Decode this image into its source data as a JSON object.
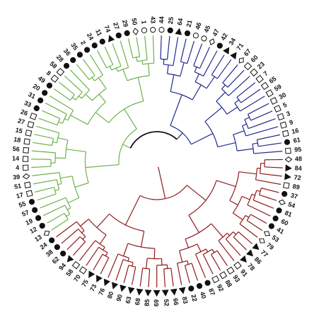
{
  "root_color": "#111111",
  "clusters": [
    {
      "color": "#1f2b8f",
      "leaves": [
        {
          "label": "44",
          "shape": "open-circle"
        },
        {
          "label": "25",
          "shape": "filled-circle"
        },
        {
          "label": "64",
          "shape": "filled-triangle"
        },
        {
          "label": "21",
          "shape": "filled-circle"
        },
        {
          "label": "46",
          "shape": "open-circle"
        },
        {
          "label": "45",
          "shape": "open-circle"
        },
        {
          "label": "47",
          "shape": "open-diamond"
        },
        {
          "label": "42",
          "shape": "filled-circle"
        },
        {
          "label": "34",
          "shape": "filled-triangle"
        },
        {
          "label": "71",
          "shape": "filled-triangle"
        },
        {
          "label": "67",
          "shape": "open-diamond"
        },
        {
          "label": "60",
          "shape": "open-square"
        },
        {
          "label": "23",
          "shape": "open-square"
        },
        {
          "label": "7",
          "shape": "open-square"
        },
        {
          "label": "65",
          "shape": "open-square"
        },
        {
          "label": "59",
          "shape": "open-square"
        },
        {
          "label": "30",
          "shape": "open-square"
        },
        {
          "label": "5",
          "shape": "open-square"
        },
        {
          "label": "3",
          "shape": "open-square"
        },
        {
          "label": "9",
          "shape": "open-square"
        },
        {
          "label": "16",
          "shape": "open-square"
        },
        {
          "label": "61",
          "shape": "filled-circle"
        },
        {
          "label": "95",
          "shape": "open-square"
        }
      ]
    },
    {
      "color": "#8e1b1b",
      "leaves": [
        {
          "label": "48",
          "shape": "open-diamond"
        },
        {
          "label": "84",
          "shape": "filled-triangle"
        },
        {
          "label": "72",
          "shape": "filled-triangle"
        },
        {
          "label": "89",
          "shape": "open-square"
        },
        {
          "label": "37",
          "shape": "filled-circle"
        },
        {
          "label": "54",
          "shape": "open-diamond"
        },
        {
          "label": "81",
          "shape": "filled-circle"
        },
        {
          "label": "60",
          "shape": "filled-circle"
        },
        {
          "label": "41",
          "shape": "filled-circle"
        },
        {
          "label": "53",
          "shape": "open-diamond"
        },
        {
          "label": "79",
          "shape": "open-diamond"
        },
        {
          "label": "77",
          "shape": "filled-triangle"
        },
        {
          "label": "86",
          "shape": "filled-triangle"
        },
        {
          "label": "78",
          "shape": "filled-triangle"
        },
        {
          "label": "91",
          "shape": "open-square"
        },
        {
          "label": "93",
          "shape": "open-square"
        },
        {
          "label": "88",
          "shape": "open-square"
        },
        {
          "label": "92",
          "shape": "open-square"
        },
        {
          "label": "87",
          "shape": "filled-circle"
        },
        {
          "label": "40",
          "shape": "filled-circle"
        },
        {
          "label": "22",
          "shape": "filled-circle"
        },
        {
          "label": "83",
          "shape": "filled-triangle"
        },
        {
          "label": "66",
          "shape": "filled-triangle"
        },
        {
          "label": "52",
          "shape": "filled-triangle"
        },
        {
          "label": "69",
          "shape": "filled-triangle"
        },
        {
          "label": "85",
          "shape": "filled-triangle"
        },
        {
          "label": "68",
          "shape": "filled-triangle"
        },
        {
          "label": "63",
          "shape": "filled-triangle"
        },
        {
          "label": "90",
          "shape": "filled-triangle"
        },
        {
          "label": "80",
          "shape": "filled-triangle"
        },
        {
          "label": "76",
          "shape": "filled-triangle"
        },
        {
          "label": "73",
          "shape": "filled-triangle"
        },
        {
          "label": "75",
          "shape": "filled-triangle"
        },
        {
          "label": "70",
          "shape": "open-square"
        },
        {
          "label": "58",
          "shape": "open-square"
        },
        {
          "label": "94",
          "shape": "filled-triangle"
        },
        {
          "label": "62",
          "shape": "filled-circle"
        },
        {
          "label": "38",
          "shape": "filled-circle"
        },
        {
          "label": "24",
          "shape": "filled-circle"
        }
      ]
    },
    {
      "color": "#6cb24a",
      "leaves": [
        {
          "label": "13",
          "shape": "open-diamond"
        },
        {
          "label": "12",
          "shape": "filled-circle"
        },
        {
          "label": "19",
          "shape": "filled-circle"
        },
        {
          "label": "57",
          "shape": "filled-circle"
        },
        {
          "label": "55",
          "shape": "filled-circle"
        },
        {
          "label": "17",
          "shape": "open-square"
        },
        {
          "label": "51",
          "shape": "open-square"
        },
        {
          "label": "39",
          "shape": "open-diamond"
        },
        {
          "label": "4",
          "shape": "open-square"
        },
        {
          "label": "14",
          "shape": "open-square"
        },
        {
          "label": "56",
          "shape": "open-square"
        },
        {
          "label": "18",
          "shape": "open-square"
        },
        {
          "label": "15",
          "shape": "open-square"
        },
        {
          "label": "27",
          "shape": "open-square"
        },
        {
          "label": "26",
          "shape": "open-square"
        },
        {
          "label": "33",
          "shape": "filled-circle"
        },
        {
          "label": "31",
          "shape": "filled-circle"
        },
        {
          "label": "20",
          "shape": "filled-circle"
        },
        {
          "label": "49",
          "shape": "filled-circle"
        },
        {
          "label": "8",
          "shape": "open-square"
        },
        {
          "label": "58",
          "shape": "open-square"
        },
        {
          "label": "28",
          "shape": "filled-circle"
        },
        {
          "label": "36",
          "shape": "filled-circle"
        },
        {
          "label": "35",
          "shape": "filled-circle"
        },
        {
          "label": "2",
          "shape": "filled-circle"
        },
        {
          "label": "24",
          "shape": "filled-circle"
        },
        {
          "label": "11",
          "shape": "filled-circle"
        },
        {
          "label": "74",
          "shape": "filled-triangle"
        },
        {
          "label": "27",
          "shape": "filled-circle"
        },
        {
          "label": "29",
          "shape": "filled-circle"
        },
        {
          "label": "50",
          "shape": "open-diamond"
        },
        {
          "label": "1",
          "shape": "open-circle"
        },
        {
          "label": "43",
          "shape": "open-circle"
        }
      ]
    }
  ]
}
